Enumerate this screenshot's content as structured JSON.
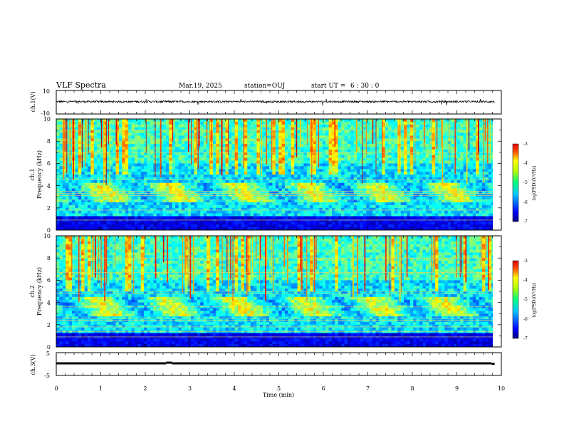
{
  "header": {
    "title": "VLF Spectra",
    "date": "Mar.19, 2025",
    "station": "station=OUJ",
    "start_label": "start UT =",
    "start_time": "6 : 30 : 0"
  },
  "chart_data": [
    {
      "type": "line",
      "id": "ch1-waveform",
      "ylabel": "ch.1(V)",
      "ylim": [
        -10,
        10
      ],
      "yticks": [
        "10",
        "-10"
      ],
      "x_range": [
        0,
        10
      ],
      "baseline_v": 0.5,
      "color": "#000000"
    },
    {
      "type": "heatmap",
      "id": "ch1-spectrogram",
      "ylabel_top": "ch.1",
      "ylabel": "Frequency (kHz)",
      "ylim": [
        0,
        10
      ],
      "yticks": [
        "0",
        "2",
        "4",
        "6",
        "8",
        "10"
      ],
      "x_range": [
        0,
        9.85
      ],
      "colorbar": {
        "label": "log(PSD)(V²/Hz)",
        "range": [
          -7,
          -3
        ],
        "ticks": [
          "-3",
          "-4",
          "-5",
          "-6",
          "-7"
        ]
      },
      "narrowband_lines_khz": [
        0.9,
        1.8,
        2.7,
        3.1,
        3.3,
        3.5,
        4.6,
        7.0,
        8.1,
        9.0
      ],
      "chorus_band_khz": [
        2.5,
        4.2
      ],
      "low_freq_floor_khz": [
        0,
        1.2
      ]
    },
    {
      "type": "heatmap",
      "id": "ch2-spectrogram",
      "ylabel_top": "ch.2",
      "ylabel": "Frequency (kHz)",
      "ylim": [
        0,
        10
      ],
      "yticks": [
        "0",
        "2",
        "4",
        "6",
        "8",
        "10"
      ],
      "x_range": [
        0,
        9.85
      ],
      "colorbar": {
        "label": "log(PSD)(V²/Hz)",
        "range": [
          -7,
          -3
        ],
        "ticks": [
          "-3",
          "-4",
          "-5",
          "-6",
          "-7"
        ]
      },
      "narrowband_lines_khz": [
        0.9,
        1.4,
        1.8,
        2.4,
        2.6,
        3.6,
        4.8,
        5.0,
        6.7,
        8.0
      ],
      "chorus_band_khz": [
        2.8,
        4.5
      ],
      "low_freq_floor_khz": [
        0,
        1.2
      ]
    },
    {
      "type": "line",
      "id": "ch3-waveform",
      "ylabel": "ch.3(V)",
      "ylim": [
        -5,
        5
      ],
      "yticks": [
        "5",
        "-5"
      ],
      "xlabel": "Time (min)",
      "xticks": [
        "0",
        "1",
        "2",
        "3",
        "4",
        "5",
        "6",
        "7",
        "8",
        "9",
        "10"
      ],
      "segments": [
        {
          "x": [
            0,
            2.47
          ],
          "y": 0.3
        },
        {
          "x": [
            2.47,
            2.6
          ],
          "y": 0.6
        },
        {
          "x": [
            2.6,
            9.78
          ],
          "y": 0.3
        },
        {
          "x": [
            9.78,
            9.85
          ],
          "y": 0.1
        }
      ],
      "color": "#000000"
    }
  ]
}
